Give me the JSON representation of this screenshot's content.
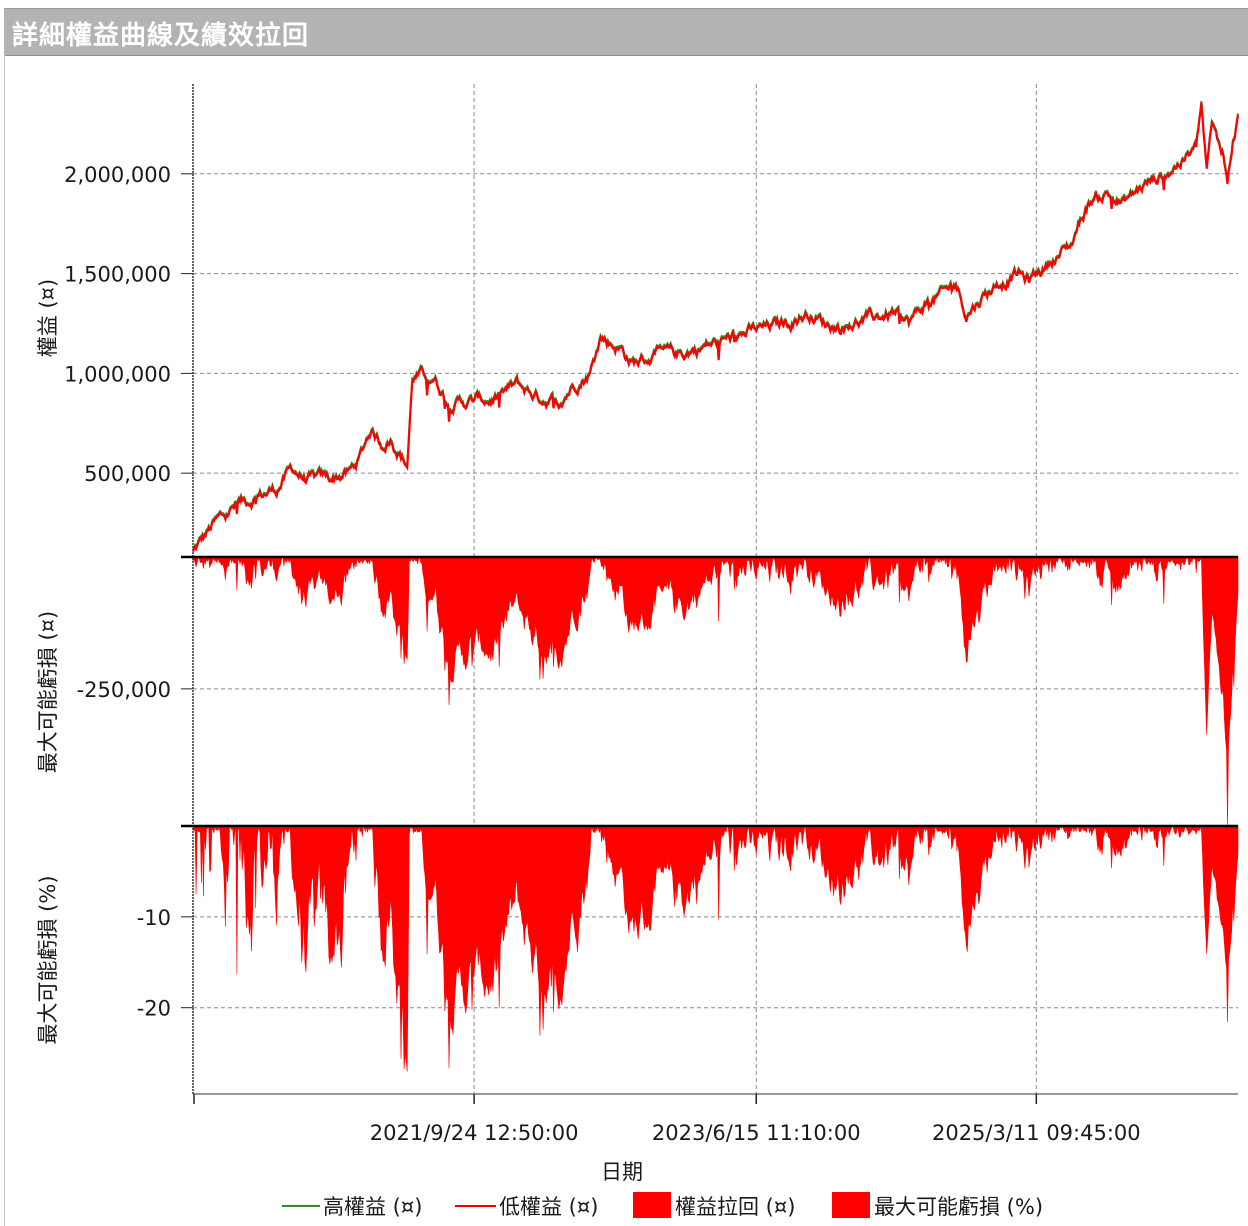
{
  "window": {
    "title": "詳細權益曲線及績效拉回"
  },
  "chart_data": {
    "type": "line",
    "xlabel": "日期",
    "x_ticks": [
      "2021/9/24 12:50:00",
      "2023/6/15 11:10:00",
      "2025/3/11 09:45:00"
    ],
    "x_range": [
      "2019/12/31",
      "2026/9/10"
    ],
    "panels": [
      {
        "ylabel": "權益 (¤)",
        "type": "line",
        "yticks": [
          500000,
          1000000,
          1500000,
          2000000
        ],
        "ytick_labels": [
          "500,000",
          "1,000,000",
          "1,500,000",
          "2,000,000"
        ],
        "ylim": [
          80000,
          2450000
        ]
      },
      {
        "ylabel": "最大可能虧損 (¤)",
        "type": "area",
        "yticks": [
          -250000
        ],
        "ytick_labels": [
          "-250,000"
        ],
        "ylim": [
          -510000,
          0
        ]
      },
      {
        "ylabel": "最大可能虧損 (%)",
        "type": "area",
        "yticks": [
          -10,
          -20
        ],
        "ytick_labels": [
          "-10",
          "-20"
        ],
        "ylim": [
          -29.5,
          0
        ]
      }
    ],
    "series": [
      {
        "name": "高權益 (¤)",
        "color": "#2e8b2e",
        "panel": 0
      },
      {
        "name": "低權益 (¤)",
        "color": "#ff0000",
        "panel": 0
      },
      {
        "name": "權益拉回 (¤)",
        "color": "#ff0000",
        "panel": 1
      },
      {
        "name": "最大可能虧損 (%)",
        "color": "#ff0000",
        "panel": 2
      }
    ],
    "equity_points": [
      [
        0.0,
        100000
      ],
      [
        0.02,
        240000
      ],
      [
        0.04,
        330000
      ],
      [
        0.06,
        380000
      ],
      [
        0.08,
        420000
      ],
      [
        0.095,
        520000
      ],
      [
        0.11,
        460000
      ],
      [
        0.13,
        470000
      ],
      [
        0.15,
        500000
      ],
      [
        0.16,
        580000
      ],
      [
        0.17,
        720000
      ],
      [
        0.18,
        650000
      ],
      [
        0.19,
        670000
      ],
      [
        0.205,
        540000
      ],
      [
        0.21,
        980000
      ],
      [
        0.23,
        990000
      ],
      [
        0.245,
        850000
      ],
      [
        0.27,
        860000
      ],
      [
        0.29,
        870000
      ],
      [
        0.31,
        940000
      ],
      [
        0.33,
        880000
      ],
      [
        0.35,
        860000
      ],
      [
        0.365,
        950000
      ],
      [
        0.38,
        1000000
      ],
      [
        0.39,
        1180000
      ],
      [
        0.41,
        1120000
      ],
      [
        0.42,
        1050000
      ],
      [
        0.44,
        1080000
      ],
      [
        0.47,
        1100000
      ],
      [
        0.5,
        1150000
      ],
      [
        0.53,
        1200000
      ],
      [
        0.56,
        1240000
      ],
      [
        0.59,
        1300000
      ],
      [
        0.605,
        1250000
      ],
      [
        0.62,
        1230000
      ],
      [
        0.64,
        1260000
      ],
      [
        0.67,
        1300000
      ],
      [
        0.685,
        1250000
      ],
      [
        0.7,
        1340000
      ],
      [
        0.72,
        1400000
      ],
      [
        0.73,
        1450000
      ],
      [
        0.74,
        1300000
      ],
      [
        0.755,
        1380000
      ],
      [
        0.77,
        1450000
      ],
      [
        0.79,
        1500000
      ],
      [
        0.8,
        1460000
      ],
      [
        0.82,
        1560000
      ],
      [
        0.84,
        1640000
      ],
      [
        0.85,
        1780000
      ],
      [
        0.86,
        1870000
      ],
      [
        0.875,
        1900000
      ],
      [
        0.89,
        1850000
      ],
      [
        0.91,
        1940000
      ],
      [
        0.93,
        2000000
      ],
      [
        0.95,
        2080000
      ],
      [
        0.96,
        2120000
      ],
      [
        0.97,
        2000000
      ],
      [
        0.98,
        2150000
      ],
      [
        0.96,
        2120000
      ],
      [
        0.965,
        2340000
      ],
      [
        0.975,
        2230000
      ],
      [
        0.985,
        2120000
      ],
      [
        0.99,
        1960000
      ],
      [
        0.995,
        2170000
      ],
      [
        1.0,
        2280000
      ]
    ]
  },
  "legend": {
    "items": [
      {
        "label": "高權益 (¤)",
        "kind": "line",
        "color": "#2e8b2e"
      },
      {
        "label": "低權益 (¤)",
        "kind": "line",
        "color": "#ff0000"
      },
      {
        "label": "權益拉回 (¤)",
        "kind": "box",
        "color": "#ff0000"
      },
      {
        "label": "最大可能虧損 (%)",
        "kind": "box",
        "color": "#ff0000"
      }
    ]
  }
}
